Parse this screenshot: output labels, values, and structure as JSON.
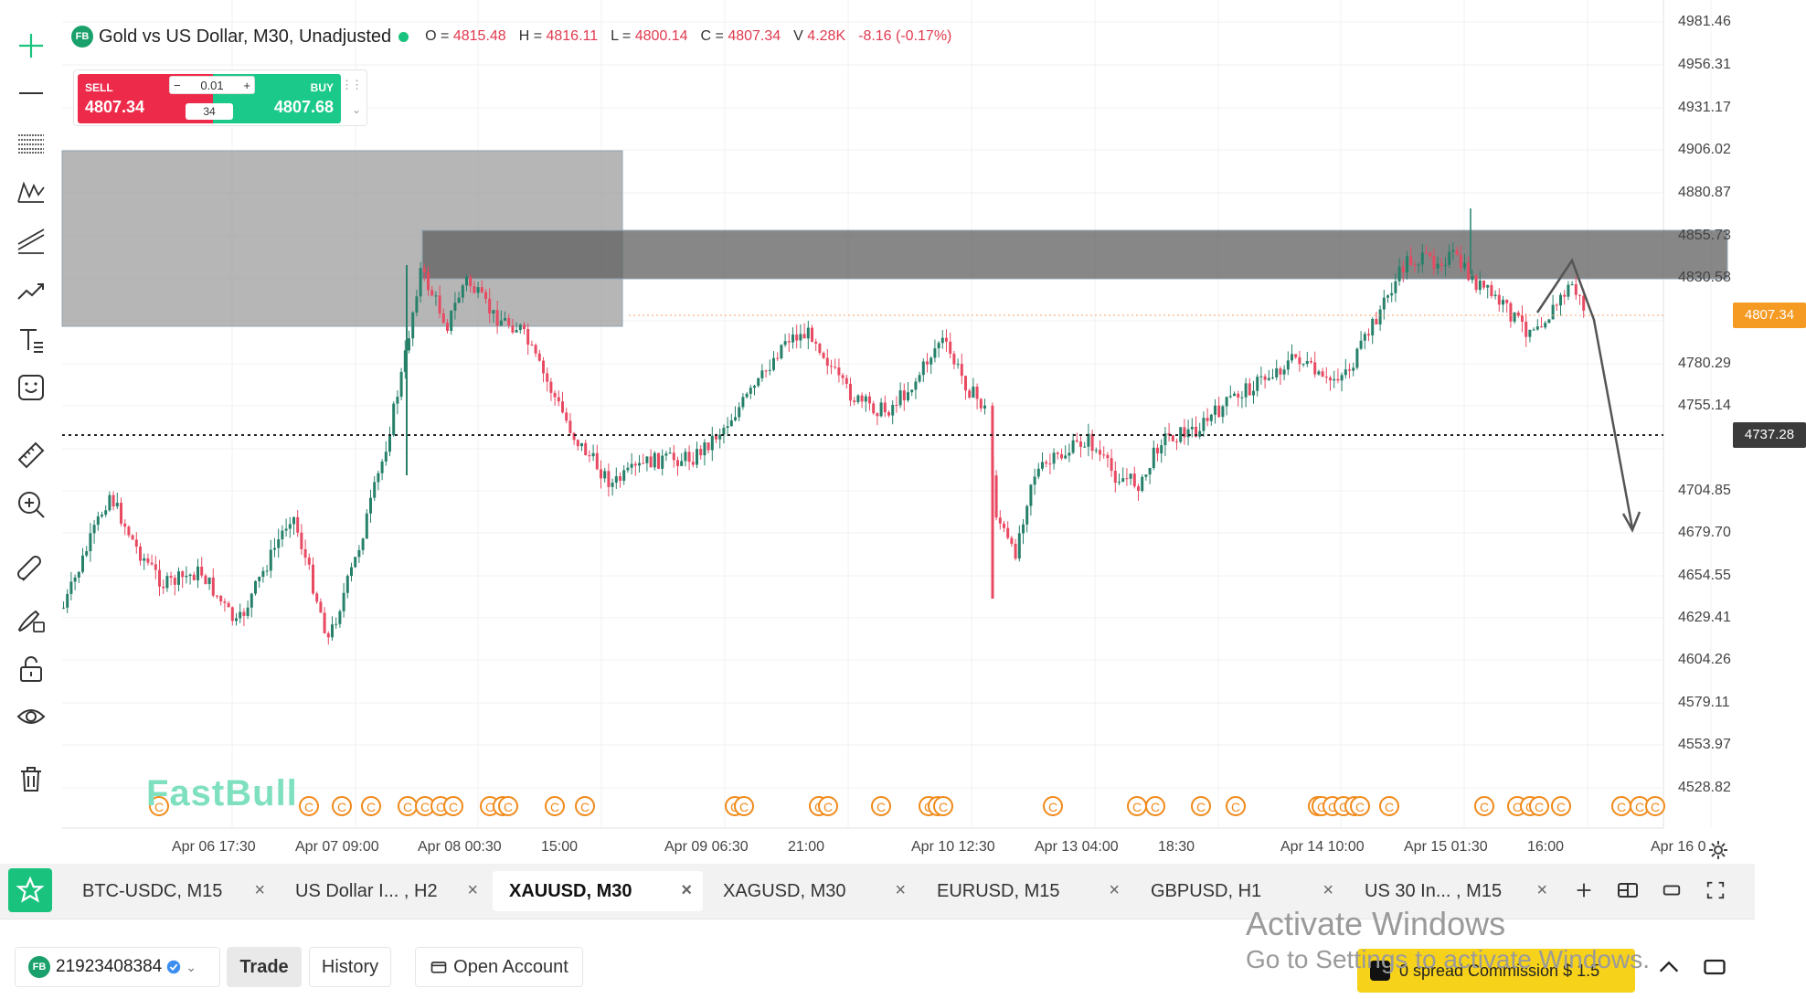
{
  "symbol_legend": {
    "badge": "FB",
    "title": "Gold vs US Dollar, M30, Unadjusted",
    "open_label": "O =",
    "open": "4815.48",
    "high_label": "H =",
    "high": "4816.11",
    "low_label": "L =",
    "low": "4800.14",
    "close_label": "C =",
    "close": "4807.34",
    "volume_label": "V",
    "volume": "4.28K",
    "change": "-8.16 (-0.17%)"
  },
  "trade_widget": {
    "sell_label": "SELL",
    "sell_price": "4807.34",
    "buy_label": "BUY",
    "buy_price": "4807.68",
    "lot_minus": "−",
    "lot_value": "0.01",
    "lot_plus": "+",
    "spread": "34"
  },
  "price_axis": {
    "labels": [
      "4981.46",
      "4956.31",
      "4931.17",
      "4906.02",
      "4880.87",
      "4855.73",
      "4830.58",
      "4780.29",
      "4755.14",
      "4704.85",
      "4679.70",
      "4654.55",
      "4629.41",
      "4604.26",
      "4579.11",
      "4553.97",
      "4528.82"
    ],
    "current_price": "4807.34",
    "current_color": "#f59a23",
    "crosshair_price": "4737.28",
    "crosshair_color": "#3b3b3b"
  },
  "time_axis": {
    "labels": [
      "Apr 06 17:30",
      "Apr 07 09:00",
      "Apr 08 00:30",
      "15:00",
      "Apr 09 06:30",
      "21:00",
      "Apr 10 12:30",
      "Apr 13 04:00",
      "18:30",
      "Apr 14 10:00",
      "Apr 15 01:30",
      "16:00",
      "Apr 16 0"
    ]
  },
  "event_marker": "C",
  "watermark": "FastBull",
  "chart_colors": {
    "up": "#26806a",
    "down": "#e84a62",
    "zone_light": "#9e9e9e",
    "zone_dark": "#5f5f5f"
  },
  "toolbar_icons": [
    "crosshair-icon",
    "horizontal-line-icon",
    "fib-lines-icon",
    "pattern-icon",
    "parallel-channel-icon",
    "trend-line-icon",
    "text-icon",
    "emoji-icon",
    "ruler-icon",
    "zoom-in-icon",
    "magnet-icon",
    "draw-lock-icon",
    "unlock-icon",
    "eye-icon",
    "trash-icon"
  ],
  "tabs": [
    {
      "label": "BTC-USDC, M15"
    },
    {
      "label": "US Dollar I... , H2"
    },
    {
      "label": "XAUUSD, M30",
      "active": true
    },
    {
      "label": "XAGUSD, M30"
    },
    {
      "label": "EURUSD, M15"
    },
    {
      "label": "GBPUSD, H1"
    },
    {
      "label": "US 30 In... , M15"
    }
  ],
  "tab_close": "×",
  "bottom_bar": {
    "account_badge": "FB",
    "account_id": "21923408384",
    "trade_label": "Trade",
    "history_label": "History",
    "open_account_label": "Open Account",
    "promo_text": "0 spread Commission $ 1.5"
  },
  "os_watermark": {
    "line1": "Activate Windows",
    "line2": "Go to Settings to activate Windows."
  }
}
